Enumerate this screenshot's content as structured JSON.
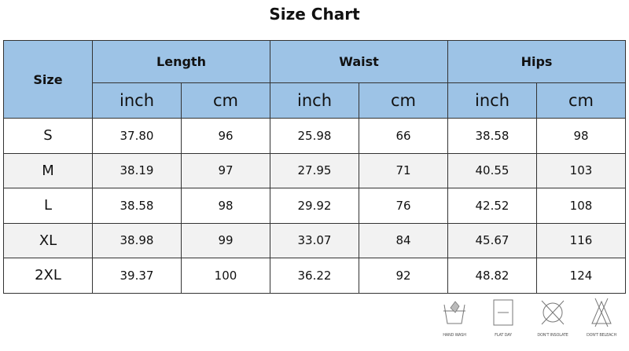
{
  "title": "Size Chart",
  "header": {
    "size": "Size",
    "groups": [
      "Length",
      "Waist",
      "Hips"
    ],
    "units": [
      "inch",
      "cm",
      "inch",
      "cm",
      "inch",
      "cm"
    ]
  },
  "rows": [
    {
      "size": "S",
      "values": [
        "37.80",
        "96",
        "25.98",
        "66",
        "38.58",
        "98"
      ]
    },
    {
      "size": "M",
      "values": [
        "38.19",
        "97",
        "27.95",
        "71",
        "40.55",
        "103"
      ]
    },
    {
      "size": "L",
      "values": [
        "38.58",
        "98",
        "29.92",
        "76",
        "42.52",
        "108"
      ]
    },
    {
      "size": "XL",
      "values": [
        "38.98",
        "99",
        "33.07",
        "84",
        "45.67",
        "116"
      ]
    },
    {
      "size": "2XL",
      "values": [
        "39.37",
        "100",
        "36.22",
        "92",
        "48.82",
        "124"
      ]
    }
  ],
  "care": [
    {
      "icon": "hand-wash-icon",
      "label": "HAND WASH"
    },
    {
      "icon": "flat-dry-icon",
      "label": "FLAT DAY"
    },
    {
      "icon": "dont-insolate-icon",
      "label": "DON'T INSOLATE"
    },
    {
      "icon": "dont-bleach-icon",
      "label": "DON'T BELEACH"
    }
  ],
  "colors": {
    "header": "#9dc3e6",
    "alt_row": "#f2f2f2"
  }
}
